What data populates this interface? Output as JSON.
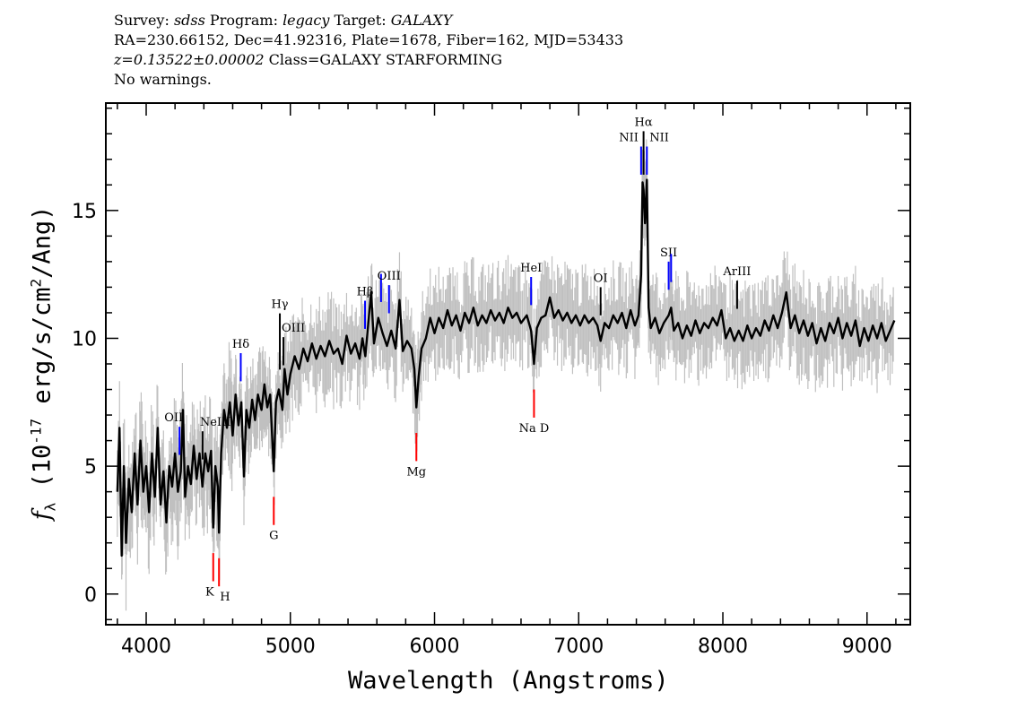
{
  "header": {
    "line1": {
      "survey_label": "Survey:",
      "survey": "sdss",
      "program_label": "Program:",
      "program": "legacy",
      "target_label": "Target:",
      "target": "GALAXY"
    },
    "line2": "RA=230.66152, Dec=41.92316, Plate=1678, Fiber=162, MJD=53433",
    "line3": {
      "z": "z=0.13522±0.00002",
      "class": "Class=GALAXY STARFORMING"
    },
    "line4": "No warnings."
  },
  "chart_data": {
    "type": "line",
    "xlabel": "Wavelength (Angstroms)",
    "ylabel": {
      "symbol": "f",
      "sub": "λ",
      "pre": "(10",
      "exp": "-17",
      "post": " erg/s/cm",
      "exp2": "2",
      "post2": "/Ang)"
    },
    "xlim": [
      3720,
      9300
    ],
    "ylim": [
      -1.2,
      19.2
    ],
    "xticks": [
      4000,
      5000,
      6000,
      7000,
      8000,
      9000
    ],
    "yticks": [
      0,
      5,
      10,
      15
    ],
    "grid": false,
    "colors": {
      "spectrum": "#000000",
      "error": "#c0c0c0",
      "emission": "#0000ff",
      "absorption": "#ff0000",
      "other": "#000000"
    },
    "spectrum": [
      [
        3800,
        4.0
      ],
      [
        3815,
        6.5
      ],
      [
        3830,
        1.5
      ],
      [
        3845,
        5
      ],
      [
        3860,
        2
      ],
      [
        3880,
        4.5
      ],
      [
        3900,
        3.2
      ],
      [
        3920,
        5.5
      ],
      [
        3940,
        3.5
      ],
      [
        3960,
        6
      ],
      [
        3980,
        4
      ],
      [
        4000,
        5
      ],
      [
        4020,
        3.2
      ],
      [
        4040,
        5.5
      ],
      [
        4060,
        3.8
      ],
      [
        4080,
        6.5
      ],
      [
        4100,
        3.5
      ],
      [
        4120,
        4.8
      ],
      [
        4140,
        2.8
      ],
      [
        4160,
        5
      ],
      [
        4180,
        4.2
      ],
      [
        4200,
        5.5
      ],
      [
        4220,
        4
      ],
      [
        4240,
        4.8
      ],
      [
        4255,
        7.2
      ],
      [
        4270,
        3.8
      ],
      [
        4290,
        5
      ],
      [
        4310,
        4.3
      ],
      [
        4330,
        5.8
      ],
      [
        4350,
        4.5
      ],
      [
        4370,
        5.5
      ],
      [
        4390,
        4.2
      ],
      [
        4410,
        5.5
      ],
      [
        4430,
        4.8
      ],
      [
        4450,
        5.6
      ],
      [
        4465,
        2.6
      ],
      [
        4480,
        5
      ],
      [
        4497,
        4.2
      ],
      [
        4505,
        2.4
      ],
      [
        4520,
        5.5
      ],
      [
        4540,
        7.2
      ],
      [
        4560,
        6.5
      ],
      [
        4580,
        7.5
      ],
      [
        4600,
        6.2
      ],
      [
        4620,
        7.8
      ],
      [
        4640,
        6.6
      ],
      [
        4660,
        7.5
      ],
      [
        4678,
        4.6
      ],
      [
        4695,
        7.2
      ],
      [
        4715,
        6.5
      ],
      [
        4735,
        7.6
      ],
      [
        4755,
        6.8
      ],
      [
        4775,
        7.8
      ],
      [
        4800,
        7.2
      ],
      [
        4820,
        8.2
      ],
      [
        4840,
        7.3
      ],
      [
        4860,
        7.8
      ],
      [
        4885,
        4.8
      ],
      [
        4900,
        7.5
      ],
      [
        4920,
        8.0
      ],
      [
        4945,
        7.2
      ],
      [
        4960,
        8.8
      ],
      [
        4980,
        7.8
      ],
      [
        5000,
        8.6
      ],
      [
        5030,
        9.3
      ],
      [
        5060,
        8.8
      ],
      [
        5090,
        9.6
      ],
      [
        5120,
        9.1
      ],
      [
        5150,
        9.8
      ],
      [
        5180,
        9.2
      ],
      [
        5210,
        9.7
      ],
      [
        5240,
        9.3
      ],
      [
        5270,
        9.9
      ],
      [
        5300,
        9.4
      ],
      [
        5330,
        9.6
      ],
      [
        5360,
        9.0
      ],
      [
        5390,
        10.1
      ],
      [
        5420,
        9.4
      ],
      [
        5450,
        9.8
      ],
      [
        5480,
        9.2
      ],
      [
        5500,
        10.0
      ],
      [
        5520,
        9.3
      ],
      [
        5560,
        11.8
      ],
      [
        5580,
        9.8
      ],
      [
        5610,
        10.8
      ],
      [
        5640,
        10.2
      ],
      [
        5670,
        9.7
      ],
      [
        5700,
        10.3
      ],
      [
        5730,
        9.6
      ],
      [
        5757,
        11.5
      ],
      [
        5780,
        9.5
      ],
      [
        5810,
        9.9
      ],
      [
        5840,
        9.6
      ],
      [
        5860,
        8.8
      ],
      [
        5874,
        7.3
      ],
      [
        5890,
        8.5
      ],
      [
        5910,
        9.6
      ],
      [
        5940,
        10.0
      ],
      [
        5970,
        10.8
      ],
      [
        6000,
        10.2
      ],
      [
        6030,
        10.8
      ],
      [
        6060,
        10.4
      ],
      [
        6090,
        11.1
      ],
      [
        6120,
        10.5
      ],
      [
        6150,
        10.9
      ],
      [
        6180,
        10.3
      ],
      [
        6210,
        11.0
      ],
      [
        6240,
        10.6
      ],
      [
        6270,
        11.2
      ],
      [
        6300,
        10.5
      ],
      [
        6330,
        10.9
      ],
      [
        6360,
        10.6
      ],
      [
        6390,
        11.1
      ],
      [
        6420,
        10.7
      ],
      [
        6450,
        11.0
      ],
      [
        6480,
        10.6
      ],
      [
        6510,
        11.2
      ],
      [
        6540,
        10.8
      ],
      [
        6570,
        11.0
      ],
      [
        6600,
        10.6
      ],
      [
        6640,
        10.9
      ],
      [
        6670,
        10.3
      ],
      [
        6690,
        9.0
      ],
      [
        6710,
        10.4
      ],
      [
        6740,
        10.8
      ],
      [
        6770,
        10.9
      ],
      [
        6800,
        11.6
      ],
      [
        6830,
        10.8
      ],
      [
        6860,
        11.1
      ],
      [
        6890,
        10.7
      ],
      [
        6920,
        11.0
      ],
      [
        6950,
        10.6
      ],
      [
        6980,
        10.9
      ],
      [
        7010,
        10.5
      ],
      [
        7040,
        10.9
      ],
      [
        7070,
        10.6
      ],
      [
        7100,
        10.8
      ],
      [
        7130,
        10.5
      ],
      [
        7152,
        9.9
      ],
      [
        7180,
        10.6
      ],
      [
        7210,
        10.4
      ],
      [
        7240,
        10.9
      ],
      [
        7270,
        10.6
      ],
      [
        7300,
        11.0
      ],
      [
        7330,
        10.4
      ],
      [
        7360,
        11.1
      ],
      [
        7390,
        10.5
      ],
      [
        7415,
        10.9
      ],
      [
        7433,
        12.5
      ],
      [
        7443,
        16.1
      ],
      [
        7450,
        15.8
      ],
      [
        7460,
        14.5
      ],
      [
        7473,
        16.2
      ],
      [
        7485,
        11.2
      ],
      [
        7500,
        10.4
      ],
      [
        7530,
        10.8
      ],
      [
        7560,
        10.2
      ],
      [
        7590,
        10.6
      ],
      [
        7624,
        10.9
      ],
      [
        7641,
        11.2
      ],
      [
        7660,
        10.3
      ],
      [
        7690,
        10.6
      ],
      [
        7720,
        10.0
      ],
      [
        7750,
        10.5
      ],
      [
        7780,
        10.1
      ],
      [
        7810,
        10.7
      ],
      [
        7840,
        10.2
      ],
      [
        7870,
        10.6
      ],
      [
        7900,
        10.4
      ],
      [
        7930,
        10.8
      ],
      [
        7960,
        10.5
      ],
      [
        7990,
        11.1
      ],
      [
        8020,
        10.0
      ],
      [
        8050,
        10.4
      ],
      [
        8080,
        9.9
      ],
      [
        8110,
        10.3
      ],
      [
        8140,
        9.9
      ],
      [
        8170,
        10.5
      ],
      [
        8200,
        10.0
      ],
      [
        8230,
        10.4
      ],
      [
        8260,
        10.1
      ],
      [
        8290,
        10.7
      ],
      [
        8320,
        10.3
      ],
      [
        8350,
        10.9
      ],
      [
        8380,
        10.4
      ],
      [
        8410,
        11.0
      ],
      [
        8440,
        11.8
      ],
      [
        8470,
        10.4
      ],
      [
        8500,
        10.9
      ],
      [
        8530,
        10.2
      ],
      [
        8560,
        10.7
      ],
      [
        8590,
        10.1
      ],
      [
        8620,
        10.6
      ],
      [
        8650,
        9.8
      ],
      [
        8680,
        10.4
      ],
      [
        8710,
        9.9
      ],
      [
        8740,
        10.6
      ],
      [
        8770,
        10.2
      ],
      [
        8800,
        10.8
      ],
      [
        8830,
        10.0
      ],
      [
        8860,
        10.6
      ],
      [
        8890,
        10.1
      ],
      [
        8920,
        10.7
      ],
      [
        8950,
        9.7
      ],
      [
        8980,
        10.4
      ],
      [
        9010,
        9.9
      ],
      [
        9040,
        10.5
      ],
      [
        9070,
        10.0
      ],
      [
        9100,
        10.6
      ],
      [
        9130,
        9.9
      ],
      [
        9160,
        10.3
      ],
      [
        9190,
        10.7
      ]
    ],
    "lines": [
      {
        "label": "OII",
        "wavelength": 4231,
        "type": "emission",
        "color": "#0000ff"
      },
      {
        "label": "NeIII",
        "wavelength": 4391,
        "type": "emission",
        "color": "#000000"
      },
      {
        "label": "Hδ",
        "wavelength": 4656,
        "type": "emission",
        "color": "#0000ff"
      },
      {
        "label": "Hγ",
        "wavelength": 4927,
        "type": "emission",
        "color": "#000000"
      },
      {
        "label": "OIII",
        "wavelength": 4952,
        "type": "emission",
        "color": "#000000"
      },
      {
        "label": "Hβ",
        "wavelength": 5518,
        "type": "emission",
        "color": "#0000ff"
      },
      {
        "label": "",
        "wavelength": 5629,
        "type": "emission",
        "color": "#0000ff"
      },
      {
        "label": "OIII",
        "wavelength": 5684,
        "type": "emission",
        "color": "#0000ff"
      },
      {
        "label": "HeI",
        "wavelength": 6670,
        "type": "emission",
        "color": "#0000ff"
      },
      {
        "label": "OI",
        "wavelength": 7152,
        "type": "emission",
        "color": "#000000"
      },
      {
        "label": "NII",
        "wavelength": 7433,
        "type": "emission",
        "color": "#0000ff"
      },
      {
        "label": "Hα",
        "wavelength": 7450,
        "type": "emission",
        "color": "#000000"
      },
      {
        "label": "NII",
        "wavelength": 7473,
        "type": "emission",
        "color": "#0000ff"
      },
      {
        "label": "SII",
        "wavelength": 7624,
        "type": "emission",
        "color": "#0000ff"
      },
      {
        "label": "",
        "wavelength": 7641,
        "type": "emission",
        "color": "#0000ff"
      },
      {
        "label": "ArIII",
        "wavelength": 8099,
        "type": "emission",
        "color": "#000000"
      },
      {
        "label": "K",
        "wavelength": 4465,
        "type": "absorption",
        "color": "#ff0000"
      },
      {
        "label": "H",
        "wavelength": 4505,
        "type": "absorption",
        "color": "#ff0000"
      },
      {
        "label": "G",
        "wavelength": 4885,
        "type": "absorption",
        "color": "#ff0000"
      },
      {
        "label": "Mg",
        "wavelength": 5874,
        "type": "absorption",
        "color": "#ff0000"
      },
      {
        "label": "Na D",
        "wavelength": 6690,
        "type": "absorption",
        "color": "#ff0000"
      }
    ]
  }
}
